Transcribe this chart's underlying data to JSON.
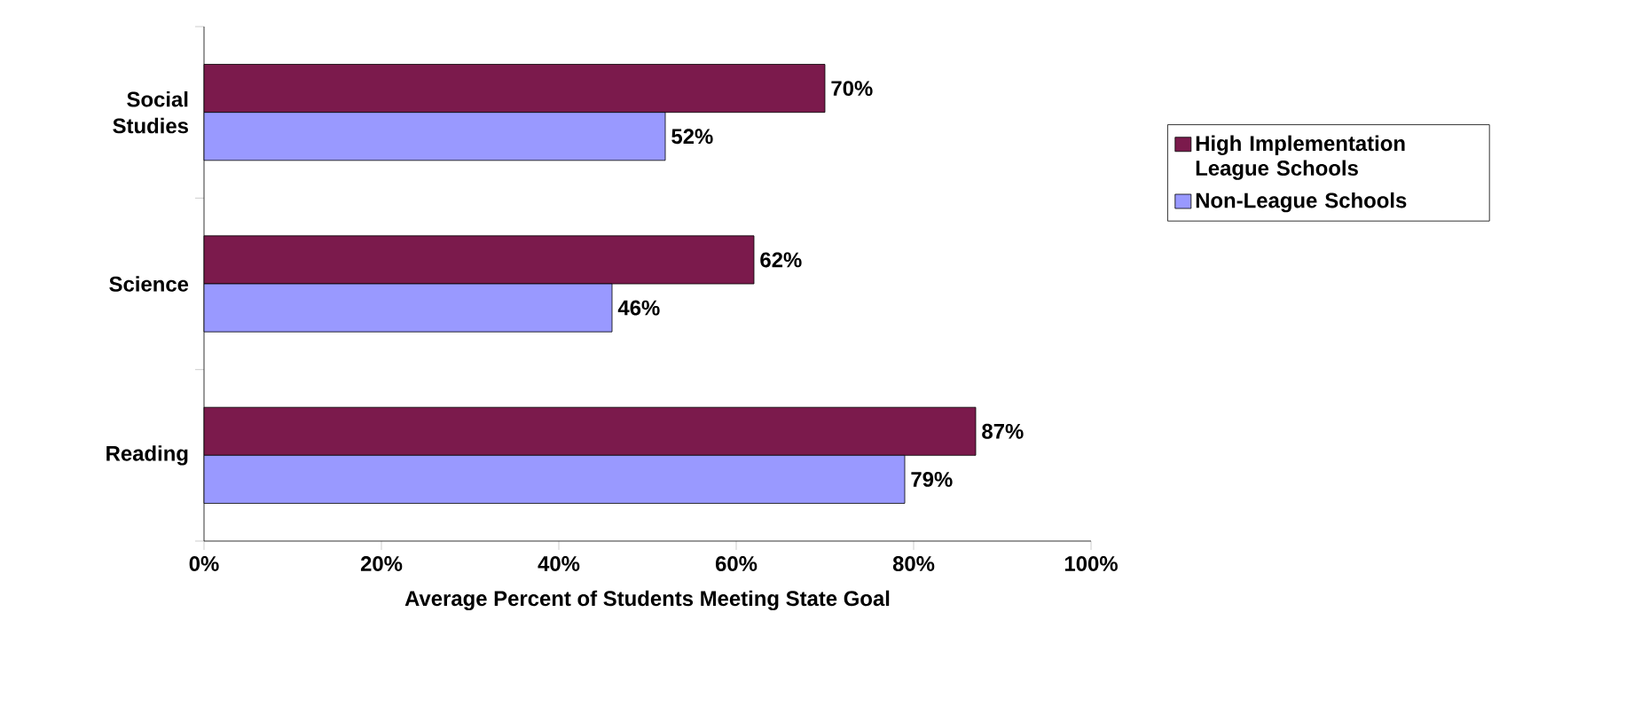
{
  "chart_data": {
    "type": "bar",
    "orientation": "horizontal",
    "xlabel": "Average Percent of Students Meeting State Goal",
    "categories": [
      "Social Studies",
      "Science",
      "Reading"
    ],
    "series": [
      {
        "name": "High Implementation League Schools",
        "color": "#7b1a4c",
        "values": [
          70,
          62,
          87
        ],
        "value_labels": [
          "70%",
          "62%",
          "87%"
        ]
      },
      {
        "name": "Non-League Schools",
        "color": "#9999ff",
        "values": [
          52,
          46,
          79
        ],
        "value_labels": [
          "52%",
          "46%",
          "79%"
        ]
      }
    ],
    "xlim": [
      0,
      100
    ],
    "xticks": [
      {
        "value": 0,
        "label": "0%"
      },
      {
        "value": 20,
        "label": "20%"
      },
      {
        "value": 40,
        "label": "40%"
      },
      {
        "value": 60,
        "label": "60%"
      },
      {
        "value": 80,
        "label": "80%"
      },
      {
        "value": 100,
        "label": "100%"
      }
    ],
    "grid": false,
    "legend": "right"
  }
}
